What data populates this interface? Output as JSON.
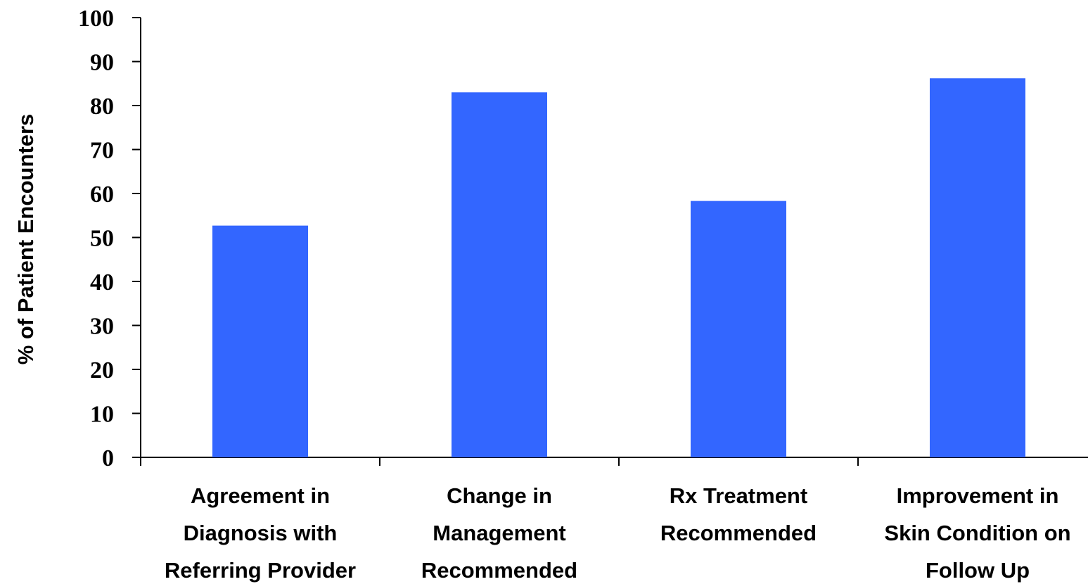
{
  "chart_data": {
    "type": "bar",
    "title": "",
    "xlabel": "",
    "ylabel": "% of Patient Encounters",
    "ylim": [
      0,
      100
    ],
    "yticks": [
      0,
      10,
      20,
      30,
      40,
      50,
      60,
      70,
      80,
      90,
      100
    ],
    "categories": [
      [
        "Agreement in",
        "Diagnosis with",
        "Referring Provider"
      ],
      [
        "Change in",
        "Management",
        "Recommended"
      ],
      [
        "Rx Treatment",
        "Recommended"
      ],
      [
        "Improvement in",
        "Skin Condition on",
        "Follow Up"
      ]
    ],
    "values": [
      52.7,
      83,
      58.3,
      86.2
    ],
    "grid": false,
    "legend": "none",
    "bar_color": "#3366ff"
  }
}
